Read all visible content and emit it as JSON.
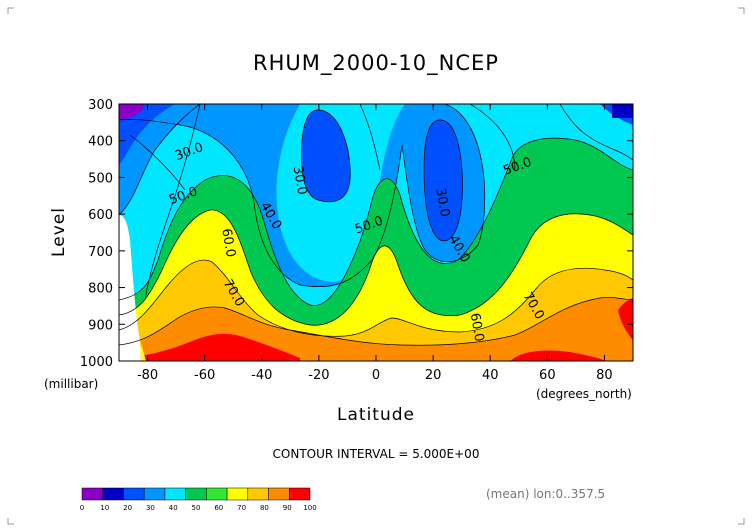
{
  "chart_data": {
    "type": "contour",
    "title": "RHUM_2000-10_NCEP",
    "xlabel": "Latitude",
    "xunits": "(degrees_north)",
    "ylabel": "Level",
    "yunits": "(millibar)",
    "xlim": [
      -90,
      90
    ],
    "ylim": [
      1000,
      300
    ],
    "xticks": [
      "-80",
      "-60",
      "-40",
      "-20",
      "0",
      "20",
      "40",
      "60",
      "80"
    ],
    "yticks": [
      "300",
      "400",
      "500",
      "600",
      "700",
      "800",
      "900",
      "1000"
    ],
    "contour_interval_text": "CONTOUR INTERVAL = 5.000E+00",
    "mean_text": "(mean) lon:0..357.5",
    "contour_labels": [
      {
        "text": "30.0",
        "x": -65,
        "y": 440
      },
      {
        "text": "30.0",
        "x": -28,
        "y": 510
      },
      {
        "text": "40.0",
        "x": -38,
        "y": 610
      },
      {
        "text": "50.0",
        "x": -67,
        "y": 560
      },
      {
        "text": "60.0",
        "x": -53,
        "y": 680
      },
      {
        "text": "70.0",
        "x": -51,
        "y": 820
      },
      {
        "text": "50.0",
        "x": -2,
        "y": 640
      },
      {
        "text": "30.0",
        "x": 22,
        "y": 570
      },
      {
        "text": "40.0",
        "x": 28,
        "y": 700
      },
      {
        "text": "50.0",
        "x": 50,
        "y": 480
      },
      {
        "text": "60.0",
        "x": 34,
        "y": 910
      },
      {
        "text": "70.0",
        "x": 54,
        "y": 855
      }
    ],
    "colorbar": {
      "levels": [
        "0",
        "10",
        "20",
        "30",
        "40",
        "50",
        "60",
        "70",
        "80",
        "90",
        "100"
      ],
      "colors": [
        "#8a00c8",
        "#0000c8",
        "#0050ff",
        "#0096ff",
        "#00e6ff",
        "#00c850",
        "#32e632",
        "#ffff00",
        "#ffc800",
        "#ff8c00",
        "#ff0000"
      ]
    }
  }
}
